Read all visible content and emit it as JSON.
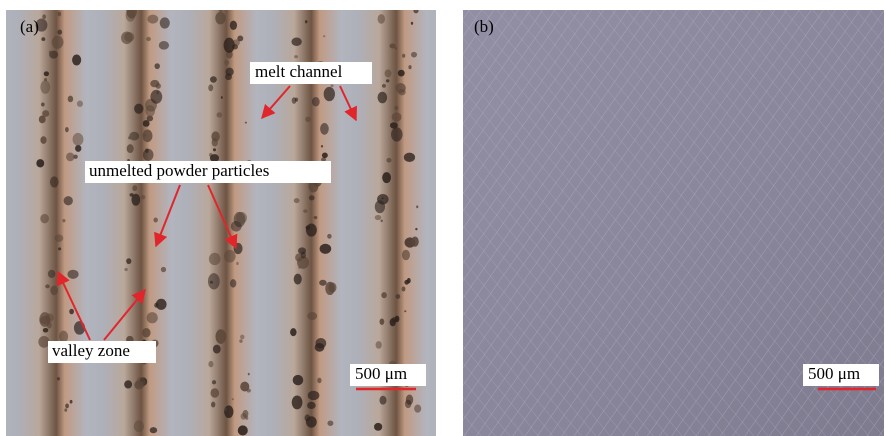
{
  "panels": [
    {
      "label": "(a)",
      "annotations": {
        "melt_channel": "melt channel",
        "unmelted": "unmelted powder particles",
        "valley": "valley zone"
      },
      "scale_bar": "500 μm"
    },
    {
      "label": "(b)",
      "scale_bar": "500 μm"
    }
  ]
}
